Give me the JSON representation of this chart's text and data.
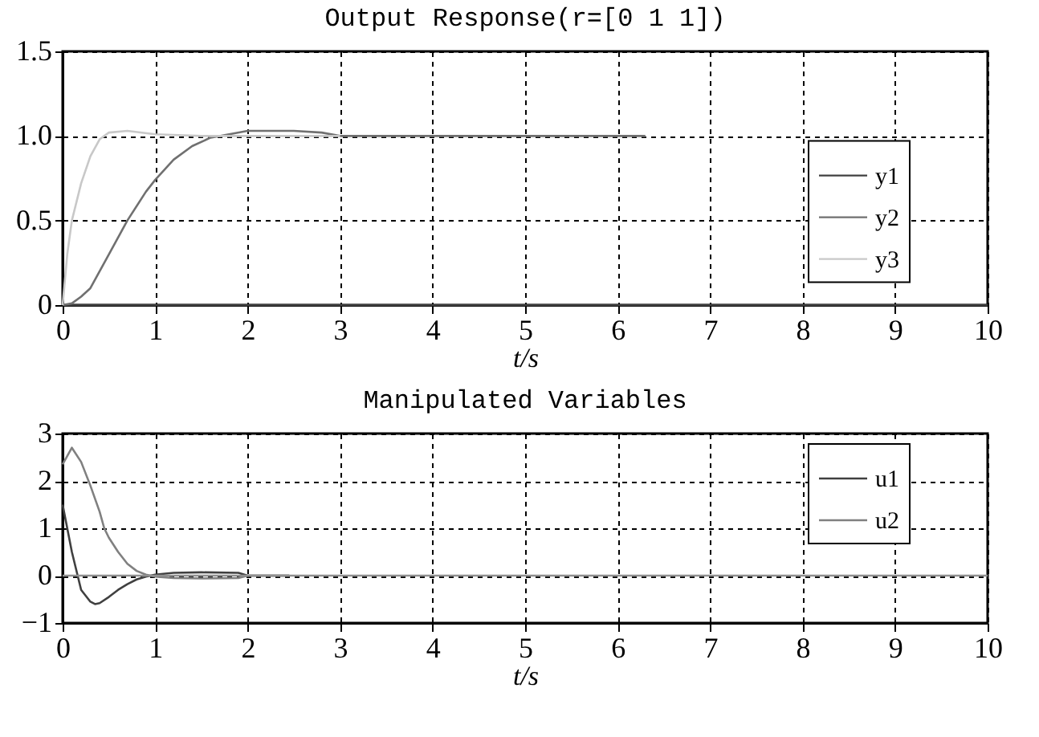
{
  "chart_data": [
    {
      "type": "line",
      "title": "Output Response(r=[0 1 1])",
      "xlabel": "t/s",
      "xlim": [
        0,
        10
      ],
      "xticks": [
        0,
        1,
        2,
        3,
        4,
        5,
        6,
        7,
        8,
        9,
        10
      ],
      "ylim": [
        0,
        1.5
      ],
      "yticks": [
        {
          "value": 0,
          "label": "0"
        },
        0.5,
        {
          "value": 1,
          "label": "1.0"
        },
        1.5
      ],
      "grid": true,
      "legend": "right",
      "line_style": "solid",
      "series": [
        {
          "name": "y1",
          "color": "#404040",
          "x": [
            0,
            10
          ],
          "values": [
            0,
            0
          ]
        },
        {
          "name": "y2",
          "color": "#707070",
          "x": [
            0,
            0.1,
            0.2,
            0.3,
            0.5,
            0.7,
            0.9,
            1.0,
            1.2,
            1.4,
            1.6,
            1.8,
            2.0,
            2.5,
            2.8,
            3.0,
            4.0,
            6.3
          ],
          "values": [
            0,
            0.01,
            0.05,
            0.1,
            0.3,
            0.5,
            0.67,
            0.74,
            0.86,
            0.94,
            0.99,
            1.01,
            1.03,
            1.03,
            1.02,
            1.0,
            1.0,
            1.0
          ]
        },
        {
          "name": "y3",
          "color": "#c8c8c8",
          "x": [
            0,
            0.05,
            0.1,
            0.2,
            0.3,
            0.4,
            0.5,
            0.7,
            1.0,
            1.5,
            2.0,
            3.0
          ],
          "values": [
            0,
            0.3,
            0.5,
            0.72,
            0.88,
            0.98,
            1.02,
            1.03,
            1.01,
            1.0,
            1.0,
            1.0
          ]
        }
      ]
    },
    {
      "type": "line",
      "title": "Manipulated Variables",
      "xlabel": "t/s",
      "xlim": [
        0,
        10
      ],
      "xticks": [
        0,
        1,
        2,
        3,
        4,
        5,
        6,
        7,
        8,
        9,
        10
      ],
      "ylim": [
        -1,
        3
      ],
      "yticks": [
        -1,
        0,
        1,
        2,
        3
      ],
      "grid": true,
      "legend": "top right",
      "line_style": "solid",
      "ref_lines": [
        {
          "axis": "y",
          "value": 0,
          "color": "#909090"
        }
      ],
      "series": [
        {
          "name": "u1",
          "color": "#404040",
          "x": [
            0,
            0.1,
            0.2,
            0.3,
            0.35,
            0.4,
            0.5,
            0.6,
            0.7,
            0.8,
            0.9,
            1.0,
            1.2,
            1.5,
            1.9,
            2.0,
            2.45
          ],
          "values": [
            1.5,
            0.5,
            -0.3,
            -0.55,
            -0.6,
            -0.58,
            -0.45,
            -0.3,
            -0.18,
            -0.08,
            -0.02,
            0.02,
            0.06,
            0.07,
            0.06,
            0.0,
            0.0
          ]
        },
        {
          "name": "u2",
          "color": "#808080",
          "x": [
            0,
            0.1,
            0.2,
            0.3,
            0.4,
            0.45,
            0.5,
            0.6,
            0.7,
            0.8,
            0.9,
            1.0,
            1.2,
            1.5,
            1.9,
            2.0,
            2.45
          ],
          "values": [
            2.35,
            2.7,
            2.4,
            1.9,
            1.35,
            1.0,
            0.8,
            0.5,
            0.25,
            0.1,
            0.02,
            -0.02,
            -0.05,
            -0.06,
            -0.05,
            0.0,
            0.0
          ]
        }
      ]
    }
  ]
}
